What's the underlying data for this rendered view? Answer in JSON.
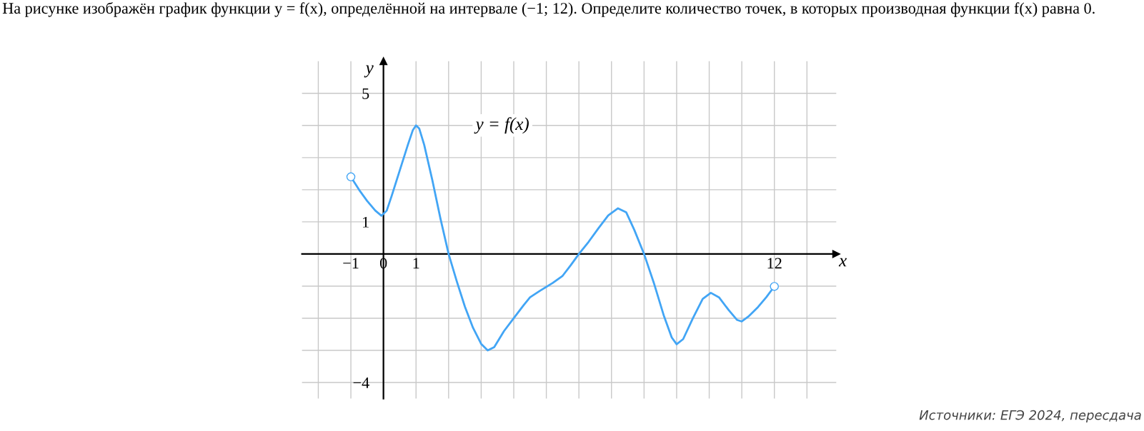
{
  "chart_data": {
    "type": "line",
    "title": "На рисунке изображён график функции y = f(x), определённой на интервале (−1; 12). Определите количество точек, в которых производная функции f(x) равна 0.",
    "xlabel": "x",
    "ylabel": "y",
    "x": [
      -1,
      -0.75,
      -0.5,
      -0.25,
      -0.06,
      0.1,
      0.25,
      0.5,
      0.75,
      0.9,
      1,
      1.1,
      1.25,
      1.5,
      1.75,
      2,
      2.25,
      2.5,
      2.75,
      3,
      3.2,
      3.4,
      3.7,
      4,
      4.3,
      4.5,
      4.8,
      5.2,
      5.5,
      5.75,
      6,
      6.3,
      6.6,
      6.9,
      7.2,
      7.45,
      7.7,
      8,
      8.3,
      8.6,
      8.85,
      9,
      9.2,
      9.5,
      9.8,
      10.05,
      10.3,
      10.6,
      10.85,
      11,
      11.2,
      11.5,
      11.75,
      12
    ],
    "series": [
      {
        "name": "y = f(x)",
        "color": "#42a5f5",
        "values": [
          2.4,
          2.0,
          1.65,
          1.35,
          1.19,
          1.35,
          1.8,
          2.6,
          3.4,
          3.85,
          4,
          3.9,
          3.4,
          2.3,
          1.1,
          0,
          -0.85,
          -1.64,
          -2.3,
          -2.8,
          -3,
          -2.9,
          -2.4,
          -2,
          -1.6,
          -1.35,
          -1.15,
          -0.9,
          -0.68,
          -0.35,
          0,
          0.38,
          0.8,
          1.2,
          1.42,
          1.3,
          0.75,
          0,
          -0.9,
          -1.9,
          -2.6,
          -2.81,
          -2.65,
          -2.0,
          -1.4,
          -1.21,
          -1.35,
          -1.75,
          -2.05,
          -2.1,
          -1.95,
          -1.65,
          -1.35,
          -1.01
        ]
      }
    ],
    "xlim": [
      -2.5,
      13.9
    ],
    "ylim": [
      -4.5,
      6
    ],
    "xticks": [
      {
        "value": -2,
        "label": null
      },
      -1,
      0,
      1,
      {
        "value": 2,
        "label": null
      },
      {
        "value": 3,
        "label": null
      },
      {
        "value": 4,
        "label": null
      },
      {
        "value": 5,
        "label": null
      },
      {
        "value": 6,
        "label": null
      },
      {
        "value": 7,
        "label": null
      },
      {
        "value": 8,
        "label": null
      },
      {
        "value": 9,
        "label": null
      },
      {
        "value": 10,
        "label": null
      },
      {
        "value": 11,
        "label": null
      },
      12,
      {
        "value": 13,
        "label": null
      }
    ],
    "yticks": [
      -4,
      {
        "value": -3,
        "label": null
      },
      {
        "value": -2,
        "label": null
      },
      {
        "value": -1,
        "label": null
      },
      {
        "value": 0,
        "label": null
      },
      1,
      {
        "value": 2,
        "label": null
      },
      {
        "value": 3,
        "label": null
      },
      {
        "value": 4,
        "label": null
      },
      5
    ],
    "grid": true,
    "marker": "none",
    "line_style": "solid",
    "annotations": [
      "Источники: ЕГЭ 2024, пересдача"
    ]
  }
}
